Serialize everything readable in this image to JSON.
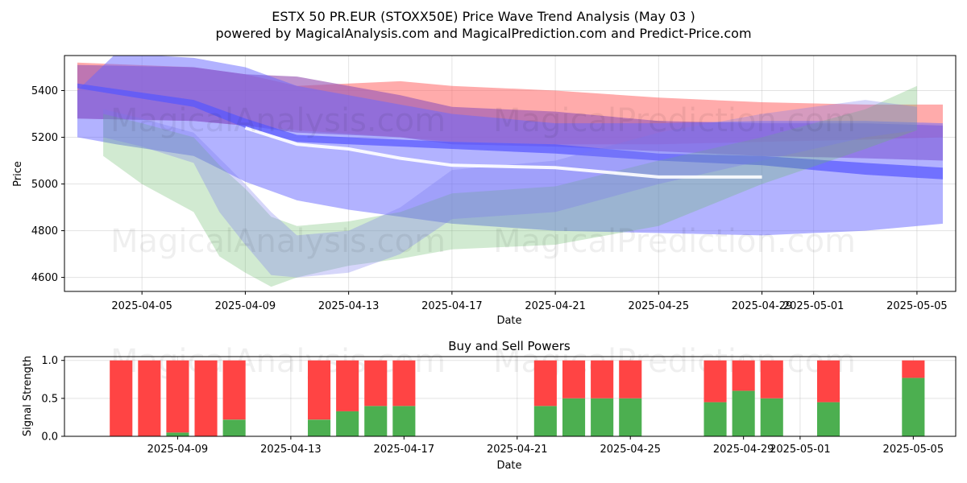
{
  "title": "ESTX 50 PR.EUR (STOXX50E) Price Wave Trend Analysis (May 03 )",
  "subtitle": "powered by MagicalAnalysis.com and MagicalPrediction.com and Predict-Price.com",
  "watermarks": [
    "MagicalAnalysis.com",
    "MagicalPrediction.com"
  ],
  "colors": {
    "red_band": "#ff6666",
    "purple_band": "#9b59b6",
    "blue_band": "#6666ff",
    "green_band": "#66bb66",
    "white_line": "#ffffff",
    "buy": "#4caf50",
    "sell": "#ff4444"
  },
  "chart_data": [
    {
      "type": "area",
      "name": "price-wave-trend",
      "xlabel": "Date",
      "ylabel": "Price",
      "xlim": [
        "2025-04-02",
        "2025-05-06.5"
      ],
      "ylim": [
        4540,
        5550
      ],
      "yticks": [
        4600,
        4800,
        5000,
        5200,
        5400
      ],
      "xticks": [
        "2025-04-05",
        "2025-04-09",
        "2025-04-13",
        "2025-04-17",
        "2025-04-21",
        "2025-04-25",
        "2025-04-29",
        "2025-05-01",
        "2025-05-05"
      ],
      "grid": true,
      "bands": [
        {
          "name": "red-band",
          "color": "#ff6666",
          "opacity": 0.55,
          "x": [
            "2025-04-02.5",
            "2025-04-07",
            "2025-04-09",
            "2025-04-11",
            "2025-04-15",
            "2025-04-17",
            "2025-04-21",
            "2025-04-25",
            "2025-04-29",
            "2025-05-03",
            "2025-05-06"
          ],
          "upper": [
            5520,
            5500,
            5470,
            5420,
            5440,
            5420,
            5400,
            5370,
            5350,
            5340,
            5340
          ],
          "lower": [
            5280,
            5270,
            5250,
            5230,
            5200,
            5180,
            5170,
            5170,
            5180,
            5190,
            5200
          ]
        },
        {
          "name": "purple-band",
          "color": "#9b59b6",
          "opacity": 0.65,
          "x": [
            "2025-04-02.5",
            "2025-04-07",
            "2025-04-09",
            "2025-04-11",
            "2025-04-15",
            "2025-04-17",
            "2025-04-21",
            "2025-04-25",
            "2025-04-29",
            "2025-05-03",
            "2025-05-06"
          ],
          "upper": [
            5510,
            5500,
            5470,
            5460,
            5380,
            5330,
            5310,
            5270,
            5260,
            5260,
            5250
          ],
          "lower": [
            5280,
            5270,
            5250,
            5220,
            5200,
            5170,
            5160,
            5140,
            5120,
            5110,
            5100
          ]
        },
        {
          "name": "blue-band",
          "color": "#6666ff",
          "opacity": 0.5,
          "x": [
            "2025-04-02.5",
            "2025-04-04",
            "2025-04-07",
            "2025-04-09",
            "2025-04-11",
            "2025-04-13",
            "2025-04-17",
            "2025-04-21",
            "2025-04-25",
            "2025-04-29",
            "2025-05-03",
            "2025-05-06"
          ],
          "upper": [
            5400,
            5560,
            5540,
            5500,
            5420,
            5380,
            5300,
            5260,
            5260,
            5270,
            5270,
            5260
          ],
          "lower": [
            5200,
            5170,
            5120,
            5010,
            4930,
            4890,
            4830,
            4800,
            4790,
            4780,
            4800,
            4830
          ]
        },
        {
          "name": "blue-strip",
          "color": "#5555ff",
          "opacity": 0.7,
          "x": [
            "2025-04-02.5",
            "2025-04-07",
            "2025-04-09",
            "2025-04-11",
            "2025-04-13",
            "2025-04-17",
            "2025-04-21",
            "2025-04-25",
            "2025-04-29",
            "2025-05-03",
            "2025-05-06"
          ],
          "upper": [
            5430,
            5360,
            5280,
            5210,
            5200,
            5180,
            5170,
            5130,
            5120,
            5090,
            5070
          ],
          "lower": [
            5410,
            5330,
            5240,
            5180,
            5170,
            5150,
            5130,
            5100,
            5080,
            5040,
            5020
          ]
        },
        {
          "name": "green-fan",
          "color": "#66bb66",
          "opacity": 0.3,
          "x": [
            "2025-04-03.5",
            "2025-04-05",
            "2025-04-07",
            "2025-04-08",
            "2025-04-09",
            "2025-04-10",
            "2025-04-11",
            "2025-04-13",
            "2025-04-15",
            "2025-04-17",
            "2025-04-21",
            "2025-04-25",
            "2025-04-29",
            "2025-05-03",
            "2025-05-05"
          ],
          "upper": [
            5300,
            5260,
            5200,
            5080,
            4980,
            4860,
            4820,
            4840,
            4880,
            4960,
            4990,
            5100,
            5200,
            5320,
            5420
          ],
          "lower": [
            5120,
            5000,
            4880,
            4690,
            4620,
            4560,
            4600,
            4650,
            4680,
            4720,
            4740,
            4820,
            5000,
            5150,
            5230
          ]
        },
        {
          "name": "blue-fan",
          "color": "#7777ee",
          "opacity": 0.3,
          "x": [
            "2025-04-03.5",
            "2025-04-05",
            "2025-04-07",
            "2025-04-08",
            "2025-04-09",
            "2025-04-10",
            "2025-04-11",
            "2025-04-13",
            "2025-04-15",
            "2025-04-17",
            "2025-04-21",
            "2025-04-25",
            "2025-04-29",
            "2025-05-03",
            "2025-05-05"
          ],
          "upper": [
            5320,
            5280,
            5220,
            5110,
            5000,
            4880,
            4780,
            4800,
            4900,
            5060,
            5100,
            5220,
            5300,
            5360,
            5330
          ],
          "lower": [
            5200,
            5160,
            5090,
            4880,
            4740,
            4610,
            4600,
            4620,
            4700,
            4850,
            4880,
            5000,
            5100,
            5200,
            5230
          ]
        }
      ],
      "lines": [
        {
          "name": "white-trend-line",
          "color": "#ffffff",
          "x": [
            "2025-04-09",
            "2025-04-11",
            "2025-04-13",
            "2025-04-15",
            "2025-04-17",
            "2025-04-21",
            "2025-04-23",
            "2025-04-25",
            "2025-04-29"
          ],
          "y": [
            5240,
            5170,
            5150,
            5110,
            5080,
            5070,
            5050,
            5030,
            5030
          ]
        }
      ]
    },
    {
      "type": "bar",
      "name": "buy-and-sell-powers",
      "title": "Buy and Sell Powers",
      "xlabel": "Date",
      "ylabel": "Signal Strength",
      "ylim": [
        0,
        1.05
      ],
      "yticks": [
        0.0,
        0.5,
        1.0
      ],
      "ytick_labels": [
        "0.0",
        "0.5",
        "1.0"
      ],
      "xlim": [
        "2025-04-05",
        "2025-05-06.5"
      ],
      "xticks": [
        "2025-04-09",
        "2025-04-13",
        "2025-04-17",
        "2025-04-21",
        "2025-04-25",
        "2025-04-29",
        "2025-05-01",
        "2025-05-05"
      ],
      "grid": true,
      "categories": [
        "2025-04-07",
        "2025-04-08",
        "2025-04-09",
        "2025-04-10",
        "2025-04-11",
        "2025-04-14",
        "2025-04-15",
        "2025-04-16",
        "2025-04-17",
        "2025-04-22",
        "2025-04-23",
        "2025-04-24",
        "2025-04-25",
        "2025-04-28",
        "2025-04-29",
        "2025-04-30",
        "2025-05-02",
        "2025-05-05"
      ],
      "series": [
        {
          "name": "Buy",
          "color": "#4caf50",
          "values": [
            0,
            0,
            0.05,
            0,
            0.22,
            0.22,
            0.33,
            0.4,
            0.4,
            0.4,
            0.5,
            0.5,
            0.5,
            0.45,
            0.6,
            0.5,
            0.45,
            0.77
          ]
        },
        {
          "name": "Sell",
          "color": "#ff4444",
          "values": [
            1,
            1,
            0.95,
            1,
            0.78,
            0.78,
            0.67,
            0.6,
            0.6,
            0.6,
            0.5,
            0.5,
            0.5,
            0.55,
            0.4,
            0.5,
            0.55,
            0.23
          ]
        }
      ]
    }
  ]
}
